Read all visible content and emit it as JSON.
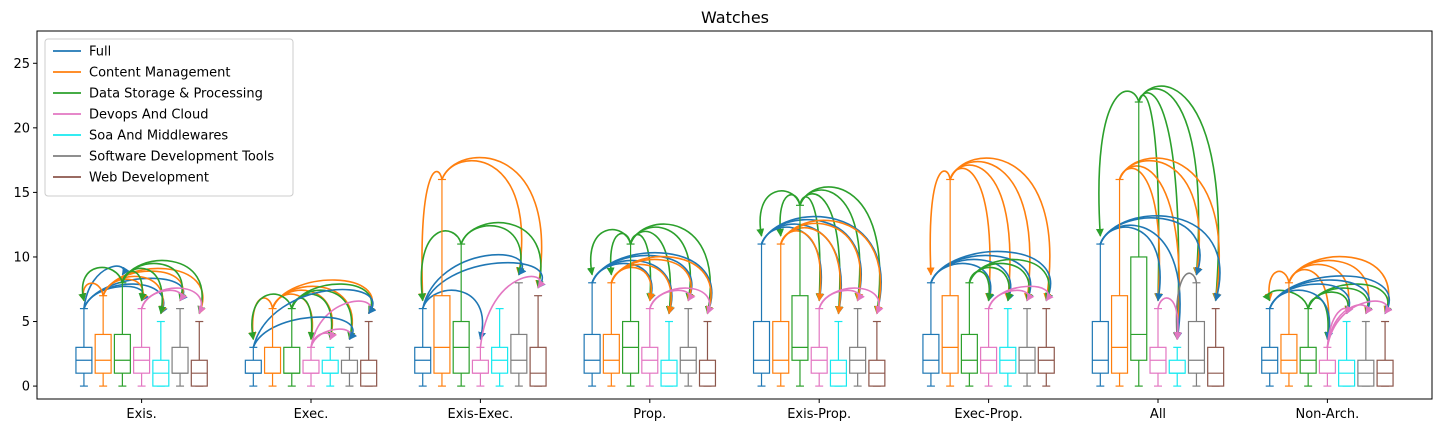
{
  "chart_data": {
    "type": "box",
    "title": "Watches",
    "xlabel": "",
    "ylabel": "",
    "ylim": [
      -1,
      27.5
    ],
    "yticks": [
      0,
      5,
      10,
      15,
      20,
      25
    ],
    "categories": [
      "Exis.",
      "Exec.",
      "Exis-Exec.",
      "Prop.",
      "Exis-Prop.",
      "Exec-Prop.",
      "All",
      "Non-Arch."
    ],
    "legend_position": "upper-left",
    "grid": false,
    "series": [
      {
        "name": "Full",
        "color": "#1f77b4",
        "boxes": [
          {
            "min": 0,
            "q1": 1,
            "median": 2,
            "q3": 3,
            "max": 6
          },
          {
            "min": 0,
            "q1": 1,
            "median": 1,
            "q3": 2,
            "max": 3
          },
          {
            "min": 0,
            "q1": 1,
            "median": 2,
            "q3": 3,
            "max": 6
          },
          {
            "min": 0,
            "q1": 1,
            "median": 2,
            "q3": 4,
            "max": 8
          },
          {
            "min": 0,
            "q1": 1,
            "median": 2,
            "q3": 5,
            "max": 11
          },
          {
            "min": 0,
            "q1": 1,
            "median": 2,
            "q3": 4,
            "max": 8
          },
          {
            "min": 0,
            "q1": 1,
            "median": 2,
            "q3": 5,
            "max": 11
          },
          {
            "min": 0,
            "q1": 1,
            "median": 2,
            "q3": 3,
            "max": 6
          }
        ]
      },
      {
        "name": "Content Management",
        "color": "#ff7f0e",
        "boxes": [
          {
            "min": 0,
            "q1": 1,
            "median": 2,
            "q3": 4,
            "max": 7
          },
          {
            "min": 0,
            "q1": 1,
            "median": 1,
            "q3": 3,
            "max": 6
          },
          {
            "min": 0,
            "q1": 1,
            "median": 3,
            "q3": 7,
            "max": 16
          },
          {
            "min": 0,
            "q1": 1,
            "median": 2,
            "q3": 4,
            "max": 8
          },
          {
            "min": 0,
            "q1": 1,
            "median": 2,
            "q3": 5,
            "max": 11
          },
          {
            "min": 0,
            "q1": 1,
            "median": 3,
            "q3": 7,
            "max": 16
          },
          {
            "min": 0,
            "q1": 1,
            "median": 3,
            "q3": 7,
            "max": 16
          },
          {
            "min": 0,
            "q1": 1,
            "median": 2,
            "q3": 4,
            "max": 8
          }
        ]
      },
      {
        "name": "Data Storage & Processing",
        "color": "#2ca02c",
        "boxes": [
          {
            "min": 0,
            "q1": 1,
            "median": 2,
            "q3": 4,
            "max": 8
          },
          {
            "min": 0,
            "q1": 1,
            "median": 1,
            "q3": 3,
            "max": 6
          },
          {
            "min": 0,
            "q1": 1,
            "median": 3,
            "q3": 5,
            "max": 11
          },
          {
            "min": 0,
            "q1": 1,
            "median": 3,
            "q3": 5,
            "max": 11
          },
          {
            "min": 0,
            "q1": 2,
            "median": 3,
            "q3": 7,
            "max": 14
          },
          {
            "min": 0,
            "q1": 1,
            "median": 2,
            "q3": 4,
            "max": 8
          },
          {
            "min": 0,
            "q1": 2,
            "median": 4,
            "q3": 10,
            "max": 22
          },
          {
            "min": 0,
            "q1": 1,
            "median": 2,
            "q3": 3,
            "max": 6
          }
        ]
      },
      {
        "name": "Devops And Cloud",
        "color": "#e377c2",
        "boxes": [
          {
            "min": 0,
            "q1": 1,
            "median": 2,
            "q3": 3,
            "max": 6
          },
          {
            "min": 0,
            "q1": 1,
            "median": 1,
            "q3": 2,
            "max": 3
          },
          {
            "min": 0,
            "q1": 1,
            "median": 1,
            "q3": 2,
            "max": 3
          },
          {
            "min": 0,
            "q1": 1,
            "median": 2,
            "q3": 3,
            "max": 6
          },
          {
            "min": 0,
            "q1": 1,
            "median": 2,
            "q3": 3,
            "max": 6
          },
          {
            "min": 0,
            "q1": 1,
            "median": 2,
            "q3": 3,
            "max": 6
          },
          {
            "min": 0,
            "q1": 1,
            "median": 2,
            "q3": 3,
            "max": 6
          },
          {
            "min": 0,
            "q1": 1,
            "median": 1,
            "q3": 2,
            "max": 3
          }
        ]
      },
      {
        "name": "Soa And Middlewares",
        "color": "#17e9f0",
        "boxes": [
          {
            "min": 0,
            "q1": 0,
            "median": 1,
            "q3": 2,
            "max": 5
          },
          {
            "min": 0,
            "q1": 1,
            "median": 1,
            "q3": 2,
            "max": 3
          },
          {
            "min": 0,
            "q1": 1,
            "median": 2,
            "q3": 3,
            "max": 6
          },
          {
            "min": 0,
            "q1": 0,
            "median": 1,
            "q3": 2,
            "max": 5
          },
          {
            "min": 0,
            "q1": 0,
            "median": 1,
            "q3": 2,
            "max": 5
          },
          {
            "min": 0,
            "q1": 1,
            "median": 2,
            "q3": 3,
            "max": 6
          },
          {
            "min": 0,
            "q1": 1,
            "median": 1,
            "q3": 2,
            "max": 3
          },
          {
            "min": 0,
            "q1": 0,
            "median": 1,
            "q3": 2,
            "max": 5
          }
        ]
      },
      {
        "name": "Software Development Tools",
        "color": "#7f7f7f",
        "boxes": [
          {
            "min": 0,
            "q1": 1,
            "median": 1,
            "q3": 3,
            "max": 6
          },
          {
            "min": 0,
            "q1": 1,
            "median": 1,
            "q3": 2,
            "max": 3
          },
          {
            "min": 0,
            "q1": 1,
            "median": 2,
            "q3": 4,
            "max": 8
          },
          {
            "min": 0,
            "q1": 1,
            "median": 2,
            "q3": 3,
            "max": 6
          },
          {
            "min": 0,
            "q1": 1,
            "median": 2,
            "q3": 3,
            "max": 6
          },
          {
            "min": 0,
            "q1": 1,
            "median": 2,
            "q3": 3,
            "max": 6
          },
          {
            "min": 0,
            "q1": 1,
            "median": 2,
            "q3": 5,
            "max": 8
          },
          {
            "min": 0,
            "q1": 0,
            "median": 1,
            "q3": 2,
            "max": 5
          }
        ]
      },
      {
        "name": "Web Development",
        "color": "#8c564b",
        "boxes": [
          {
            "min": 0,
            "q1": 0,
            "median": 1,
            "q3": 2,
            "max": 5
          },
          {
            "min": 0,
            "q1": 0,
            "median": 1,
            "q3": 2,
            "max": 5
          },
          {
            "min": 0,
            "q1": 0,
            "median": 1,
            "q3": 3,
            "max": 7
          },
          {
            "min": 0,
            "q1": 0,
            "median": 1,
            "q3": 2,
            "max": 5
          },
          {
            "min": 0,
            "q1": 0,
            "median": 1,
            "q3": 2,
            "max": 5
          },
          {
            "min": 0,
            "q1": 1,
            "median": 2,
            "q3": 3,
            "max": 6
          },
          {
            "min": 0,
            "q1": 0,
            "median": 1,
            "q3": 3,
            "max": 6
          },
          {
            "min": 0,
            "q1": 0,
            "median": 1,
            "q3": 2,
            "max": 5
          }
        ]
      }
    ],
    "arrows": [
      {
        "category": 0,
        "from": 0,
        "to": [
          2,
          3,
          4,
          5
        ]
      },
      {
        "category": 0,
        "from": 1,
        "to": [
          0,
          3,
          4,
          5,
          6
        ]
      },
      {
        "category": 0,
        "from": 2,
        "to": [
          0,
          3,
          4,
          5,
          6
        ]
      },
      {
        "category": 0,
        "from": 3,
        "to": [
          5,
          6
        ]
      },
      {
        "category": 1,
        "from": 1,
        "to": [
          0,
          3,
          4,
          5,
          6
        ]
      },
      {
        "category": 1,
        "from": 2,
        "to": [
          0,
          3,
          4,
          5,
          6
        ]
      },
      {
        "category": 1,
        "from": 3,
        "to": [
          4,
          5,
          6
        ]
      },
      {
        "category": 1,
        "from": 0,
        "to": [
          5,
          6
        ]
      },
      {
        "category": 2,
        "from": 1,
        "to": [
          0,
          5,
          6
        ]
      },
      {
        "category": 2,
        "from": 2,
        "to": [
          0,
          5,
          6
        ]
      },
      {
        "category": 2,
        "from": 0,
        "to": [
          3,
          5,
          6
        ]
      },
      {
        "category": 2,
        "from": 3,
        "to": [
          6
        ]
      },
      {
        "category": 3,
        "from": 2,
        "to": [
          0,
          1,
          3,
          4,
          5,
          6
        ]
      },
      {
        "category": 3,
        "from": 0,
        "to": [
          3,
          4,
          5,
          6
        ]
      },
      {
        "category": 3,
        "from": 1,
        "to": [
          3,
          4,
          5,
          6
        ]
      },
      {
        "category": 3,
        "from": 3,
        "to": [
          5,
          6
        ]
      },
      {
        "category": 4,
        "from": 2,
        "to": [
          0,
          1,
          3,
          4,
          5,
          6
        ]
      },
      {
        "category": 4,
        "from": 0,
        "to": [
          3,
          4,
          5,
          6
        ]
      },
      {
        "category": 4,
        "from": 1,
        "to": [
          3,
          4,
          5,
          6
        ]
      },
      {
        "category": 4,
        "from": 3,
        "to": [
          5,
          6
        ]
      },
      {
        "category": 5,
        "from": 1,
        "to": [
          0,
          3,
          4,
          5,
          6
        ]
      },
      {
        "category": 5,
        "from": 0,
        "to": [
          3,
          4,
          5,
          6
        ]
      },
      {
        "category": 5,
        "from": 2,
        "to": [
          3,
          4,
          5,
          6
        ]
      },
      {
        "category": 5,
        "from": 3,
        "to": [
          5,
          6
        ]
      },
      {
        "category": 6,
        "from": 2,
        "to": [
          0,
          3,
          4,
          5,
          6
        ]
      },
      {
        "category": 6,
        "from": 1,
        "to": [
          3,
          4,
          5,
          6
        ]
      },
      {
        "category": 6,
        "from": 0,
        "to": [
          3,
          4,
          5,
          6
        ]
      },
      {
        "category": 6,
        "from": 5,
        "to": [
          4
        ]
      },
      {
        "category": 6,
        "from": 3,
        "to": [
          4
        ]
      },
      {
        "category": 7,
        "from": 1,
        "to": [
          0,
          3,
          4,
          5,
          6
        ]
      },
      {
        "category": 7,
        "from": 2,
        "to": [
          0,
          3,
          4,
          5,
          6
        ]
      },
      {
        "category": 7,
        "from": 0,
        "to": [
          3,
          4,
          5,
          6
        ]
      },
      {
        "category": 7,
        "from": 3,
        "to": [
          4,
          5,
          6
        ]
      }
    ]
  }
}
